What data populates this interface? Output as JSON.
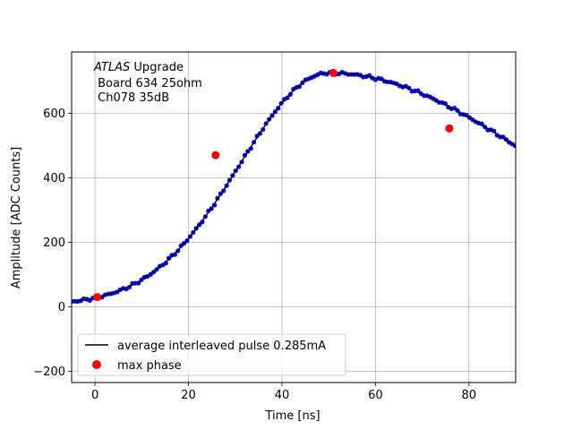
{
  "chart_data": {
    "type": "scatter",
    "xlabel": "Time [ns]",
    "ylabel": "Amplitude [ADC Counts]",
    "xlim": [
      -5,
      90
    ],
    "ylim": [
      -235,
      790
    ],
    "xticks": [
      0,
      20,
      40,
      60,
      80
    ],
    "yticks": [
      -200,
      0,
      200,
      400,
      600
    ],
    "xtick_labels": [
      "0",
      "20",
      "40",
      "60",
      "80"
    ],
    "ytick_labels": [
      "−200",
      "0",
      "200",
      "400",
      "600"
    ],
    "grid": true,
    "legend_placement": "lower-left",
    "annotation": {
      "line1_italic": "ATLAS",
      "line1_rest": " Upgrade",
      "line2": " Board 634 25ohm",
      "line3": " Ch078 35dB"
    },
    "pulse_shape": {
      "baseline": 5,
      "peak": 725,
      "peak_time": 50,
      "rise_sigma": 19,
      "fall_sigma": 46
    },
    "series": [
      {
        "name": "average interleaved pulse 0.285mA",
        "kind": "line",
        "color": "#000000",
        "sample_points_color": "#0000ff"
      },
      {
        "name": "max phase",
        "kind": "points",
        "color": "#ff0000",
        "x": [
          0.5,
          25.8,
          51.0,
          75.8
        ],
        "y": [
          30,
          470,
          725,
          553
        ]
      }
    ]
  }
}
